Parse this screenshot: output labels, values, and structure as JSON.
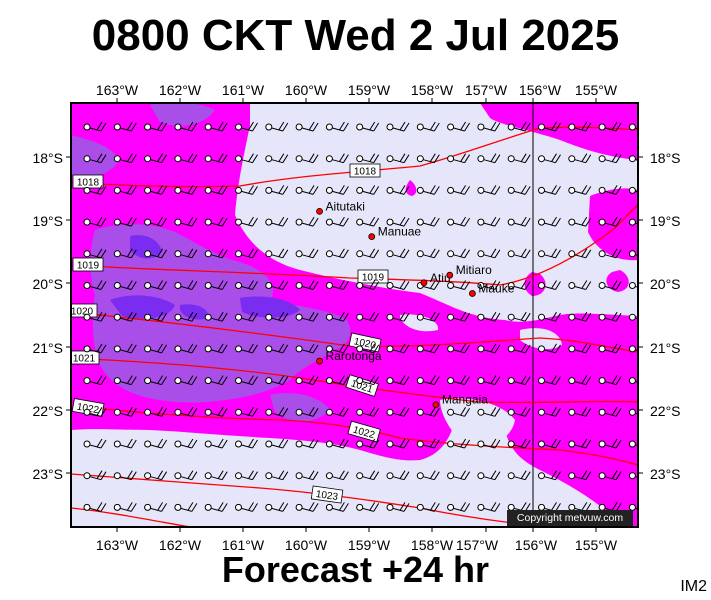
{
  "title": "0800 CKT Wed 2 Jul 2025",
  "subtitle": "Forecast +24 hr",
  "product_code": "IM2",
  "copyright": "Copyright metvuw.com",
  "colors": {
    "background": "#e6e6fa",
    "level1": "#ff00ff",
    "level2": "#aa4eea",
    "level3": "#7a2cf0",
    "isobar": "#ff0000",
    "island": "#ff0000"
  },
  "lon_labels": [
    "163°W",
    "162°W",
    "161°W",
    "160°W",
    "159°W",
    "158°W",
    "157°W",
    "156°W",
    "155°W"
  ],
  "lat_labels": [
    "18°S",
    "19°S",
    "20°S",
    "21°S",
    "22°S",
    "23°S"
  ],
  "places": [
    {
      "name": "Aitutaki",
      "lon": -159.78,
      "lat": -18.86
    },
    {
      "name": "Manuae",
      "lon": -158.95,
      "lat": -19.26
    },
    {
      "name": "Atiu",
      "lon": -158.12,
      "lat": -19.99
    },
    {
      "name": "Mitiaro",
      "lon": -157.71,
      "lat": -19.87
    },
    {
      "name": "Mauke",
      "lon": -157.35,
      "lat": -20.16
    },
    {
      "name": "Rarotonga",
      "lon": -159.78,
      "lat": -21.23
    },
    {
      "name": "Mangaia",
      "lon": -157.93,
      "lat": -21.92
    }
  ],
  "isobar_labels": [
    "1018",
    "1018",
    "1019",
    "1019",
    "1020",
    "1020",
    "1021",
    "1021",
    "1022",
    "1022",
    "1022",
    "1023"
  ]
}
